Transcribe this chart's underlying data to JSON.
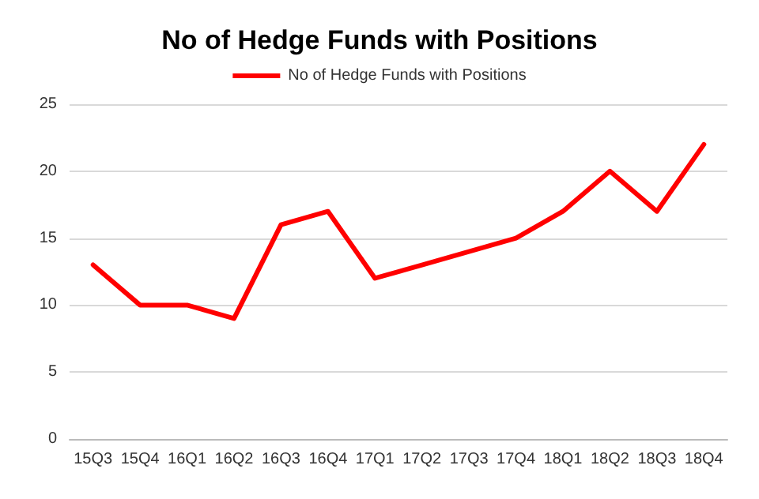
{
  "chart_data": {
    "type": "line",
    "title": "No of Hedge Funds with Positions",
    "categories": [
      "15Q3",
      "15Q4",
      "16Q1",
      "16Q2",
      "16Q3",
      "16Q4",
      "17Q1",
      "17Q2",
      "17Q3",
      "17Q4",
      "18Q1",
      "18Q2",
      "18Q3",
      "18Q4"
    ],
    "series": [
      {
        "name": "No of Hedge Funds with Positions",
        "color": "#ff0000",
        "values": [
          13,
          10,
          10,
          9,
          16,
          17,
          12,
          13,
          14,
          15,
          17,
          20,
          17,
          22
        ]
      }
    ],
    "ylim": [
      0,
      25
    ],
    "yticks": [
      0,
      5,
      10,
      15,
      20,
      25
    ],
    "grid": "y",
    "legend": "top",
    "marker": "none",
    "line_style": "solid"
  }
}
